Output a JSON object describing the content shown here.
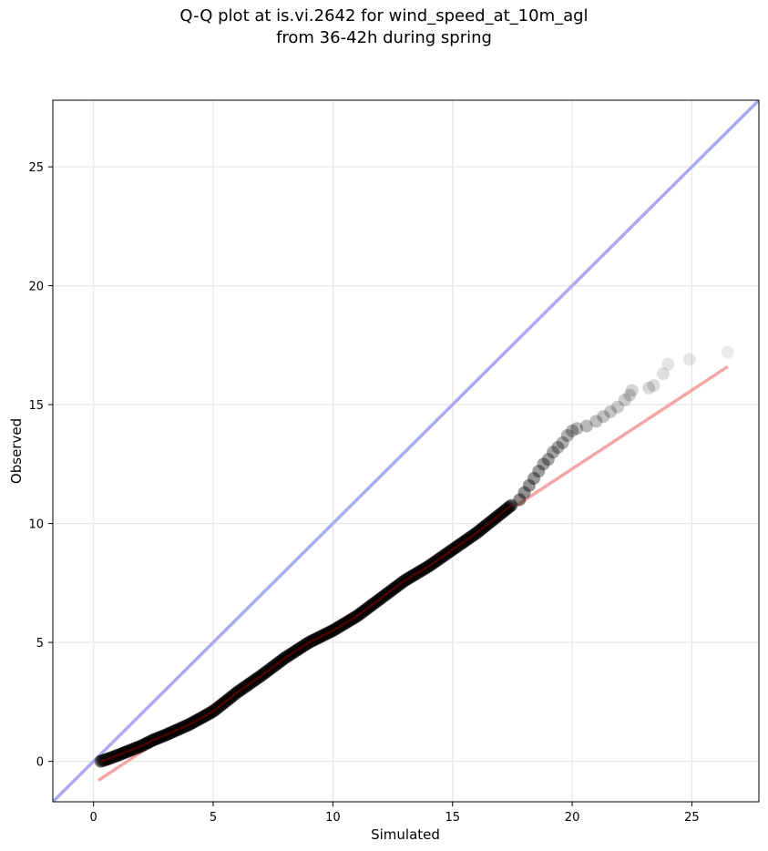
{
  "chart_data": {
    "type": "scatter",
    "title": "Q-Q plot at is.vi.2642 for wind_speed_at_10m_agl",
    "subtitle": "from 36-42h during spring",
    "xlabel": "Simulated",
    "ylabel": "Observed",
    "xlim": [
      -1.7,
      27.8
    ],
    "ylim": [
      -1.7,
      27.8
    ],
    "xticks": [
      0,
      5,
      10,
      15,
      20,
      25
    ],
    "yticks": [
      0,
      5,
      10,
      15,
      20,
      25
    ],
    "grid": true,
    "quantile_curve": {
      "x": [
        0.3,
        0.6,
        1.0,
        1.5,
        2.0,
        2.5,
        3.0,
        4.0,
        5.0,
        6.0,
        7.0,
        8.0,
        9.0,
        10.0,
        11.0,
        12.0,
        13.0,
        14.0,
        15.0,
        16.0,
        17.0,
        17.5
      ],
      "y": [
        0.0,
        0.1,
        0.25,
        0.45,
        0.65,
        0.9,
        1.1,
        1.55,
        2.1,
        2.9,
        3.6,
        4.35,
        5.0,
        5.5,
        6.1,
        6.85,
        7.6,
        8.2,
        8.9,
        9.6,
        10.4,
        10.8
      ]
    },
    "tail_points": {
      "x": [
        17.8,
        18.0,
        18.2,
        18.4,
        18.6,
        18.8,
        19.0,
        19.2,
        19.4,
        19.6,
        19.8,
        20.0,
        20.2,
        20.6,
        21.0,
        21.3,
        21.6,
        21.9,
        22.2,
        22.4,
        22.5,
        23.2,
        23.4,
        23.8,
        24.0,
        24.9,
        26.5
      ],
      "y": [
        11.0,
        11.3,
        11.6,
        11.9,
        12.2,
        12.5,
        12.7,
        13.0,
        13.2,
        13.4,
        13.7,
        13.9,
        14.0,
        14.1,
        14.3,
        14.5,
        14.7,
        14.9,
        15.2,
        15.4,
        15.6,
        15.7,
        15.8,
        16.3,
        16.7,
        16.9,
        17.2
      ]
    },
    "reference_line": {
      "label": "",
      "color": "#aaaaee",
      "x": [
        -1.7,
        27.8
      ],
      "y": [
        -1.7,
        27.8
      ]
    },
    "fit_line": {
      "label": "",
      "color": "#f4a6a6",
      "x": [
        0.2,
        26.5
      ],
      "y": [
        -0.8,
        16.6
      ]
    },
    "point_color": "#000000",
    "point_opacity_range": [
      0.08,
      0.45
    ],
    "inner_band_color": "#8b0000"
  }
}
